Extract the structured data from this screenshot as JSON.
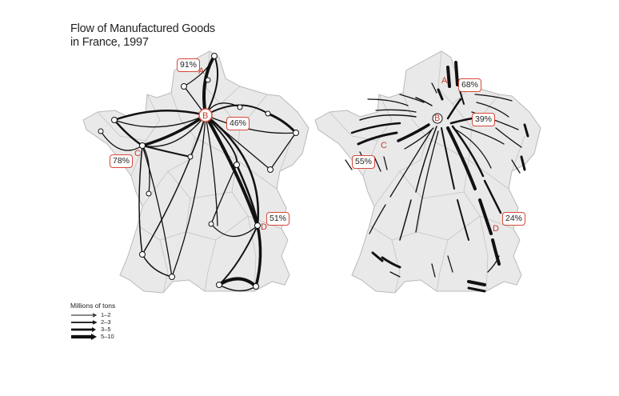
{
  "title_line1": "Flow of Manufactured Goods",
  "title_line2": "in France, 1997",
  "legend": {
    "title": "Millions of tons",
    "items": [
      {
        "range": "1–2",
        "weight": 1
      },
      {
        "range": "2–3",
        "weight": 2
      },
      {
        "range": "3–5",
        "weight": 3
      },
      {
        "range": "5–10",
        "weight": 4
      }
    ]
  },
  "left_map": {
    "nodes": {
      "A": "A",
      "B": "B",
      "C": "C",
      "D": "D"
    },
    "percentages": {
      "A": "91%",
      "B": "46%",
      "C": "78%",
      "D": "51%"
    }
  },
  "right_map": {
    "nodes": {
      "A": "A",
      "B": "B",
      "C": "C",
      "D": "D"
    },
    "percentages": {
      "A": "68%",
      "B": "39%",
      "C": "55%",
      "D": "24%"
    }
  },
  "colors": {
    "land": "#e9e9e9",
    "border": "#b9b9b9",
    "accent": "#c8392b",
    "flow": "#111111"
  }
}
